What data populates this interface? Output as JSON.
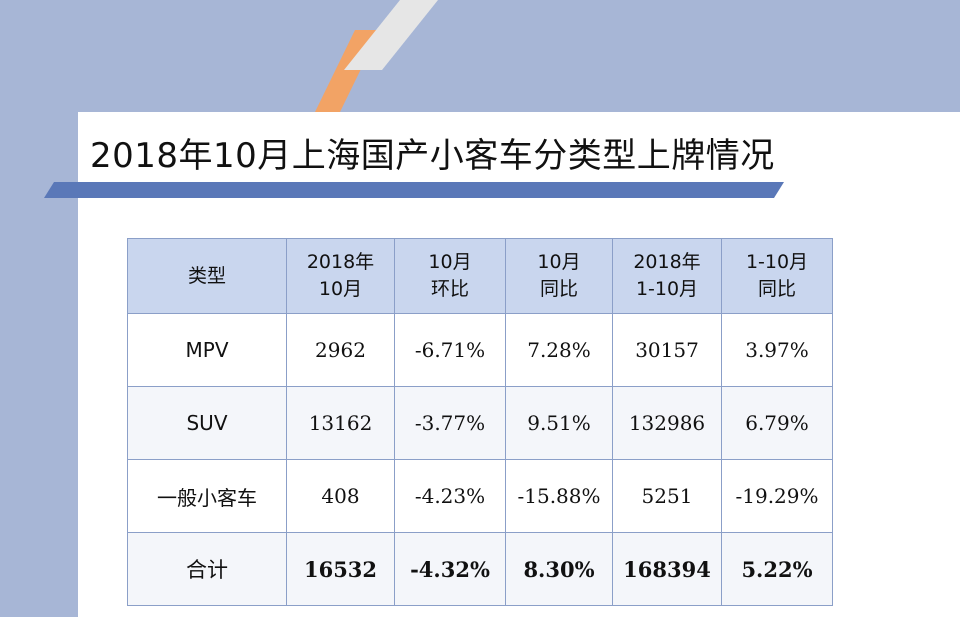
{
  "title": "2018年10月上海国产小客车分类型上牌情况",
  "colors": {
    "background_panel": "#a7b6d6",
    "header_fill": "#c9d6ee",
    "accent_orange": "#f2a365",
    "accent_bar": "#5a78b8"
  },
  "table": {
    "headers": [
      [
        "类型"
      ],
      [
        "2018年",
        "10月"
      ],
      [
        "10月",
        "环比"
      ],
      [
        "10月",
        "同比"
      ],
      [
        "2018年",
        "1-10月"
      ],
      [
        "1-10月",
        "同比"
      ]
    ],
    "rows": [
      [
        "MPV",
        "2962",
        "-6.71%",
        "7.28%",
        "30157",
        "3.97%"
      ],
      [
        "SUV",
        "13162",
        "-3.77%",
        "9.51%",
        "132986",
        "6.79%"
      ],
      [
        "一般小客车",
        "408",
        "-4.23%",
        "-15.88%",
        "5251",
        "-19.29%"
      ],
      [
        "合计",
        "16532",
        "-4.32%",
        "8.30%",
        "168394",
        "5.22%"
      ]
    ]
  }
}
